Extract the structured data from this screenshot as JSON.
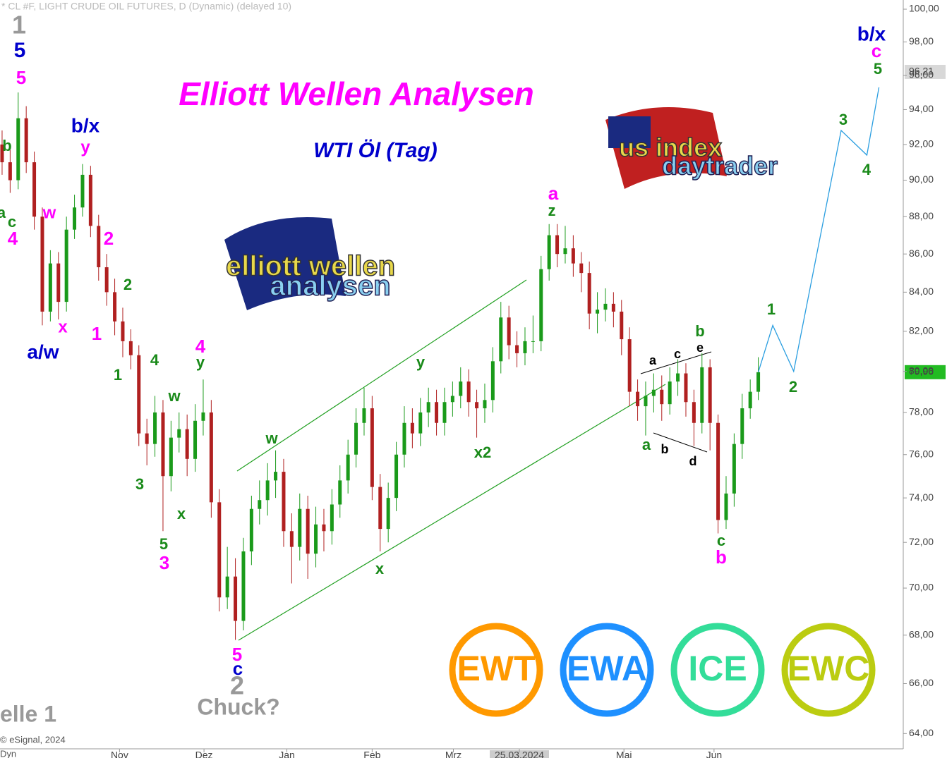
{
  "header": "* CL #F, LIGHT CRUDE OIL FUTURES, D (Dynamic) (delayed 10)",
  "copyright": "© eSignal, 2024",
  "corner_label": "Dyn",
  "chart_data": {
    "type": "candlestick",
    "title": "Elliott Wellen Analysen",
    "subtitle": "WTI Öl (Tag)",
    "log_scale": true,
    "ylim": [
      63.4,
      100.5
    ],
    "xlim": [
      -0.26,
      112.02
    ],
    "yticks": [
      {
        "value": 64,
        "label": "64,00"
      },
      {
        "value": 66,
        "label": "66,00"
      },
      {
        "value": 68,
        "label": "68,00"
      },
      {
        "value": 70,
        "label": "70,00"
      },
      {
        "value": 72,
        "label": "72,00"
      },
      {
        "value": 74,
        "label": "74,00"
      },
      {
        "value": 76,
        "label": "76,00"
      },
      {
        "value": 78,
        "label": "78,00"
      },
      {
        "value": 80,
        "label": "80,00"
      },
      {
        "value": 82,
        "label": "82,00"
      },
      {
        "value": 84,
        "label": "84,00"
      },
      {
        "value": 86,
        "label": "86,00"
      },
      {
        "value": 88,
        "label": "88,00"
      },
      {
        "value": 90,
        "label": "90,00"
      },
      {
        "value": 92,
        "label": "92,00"
      },
      {
        "value": 94,
        "label": "94,00"
      },
      {
        "value": 96,
        "label": "96,00"
      },
      {
        "value": 98,
        "label": "98,00"
      },
      {
        "value": 100,
        "label": "100,00"
      }
    ],
    "xticks": [
      {
        "value": 14.6,
        "label": "Nov"
      },
      {
        "value": 25.1,
        "label": "Dez"
      },
      {
        "value": 35.4,
        "label": "Jan"
      },
      {
        "value": 46.0,
        "label": "Feb"
      },
      {
        "value": 56.1,
        "label": "Mrz"
      },
      {
        "value": 64.3,
        "label": "25.03.2024"
      },
      {
        "value": 77.3,
        "label": "Mai"
      },
      {
        "value": 88.5,
        "label": "Jun"
      }
    ],
    "up_color": "#1a9a1a",
    "down_color": "#b02020",
    "open": [
      92.0,
      91.0,
      90.0,
      93.5,
      91.0,
      88.0,
      83.0,
      85.5,
      83.5,
      87.3,
      88.5,
      90.3,
      87.5,
      85.3,
      84.0,
      82.5,
      81.5,
      80.8,
      77.0,
      76.5,
      78.0,
      75.0,
      76.8,
      77.2,
      75.8,
      77.6,
      78.0,
      73.8,
      69.6,
      70.5,
      68.6,
      71.6,
      73.5,
      73.9,
      74.8,
      75.2,
      72.5,
      71.8,
      73.5,
      71.5,
      72.8,
      72.5,
      73.7,
      74.8,
      76.0,
      77.5,
      78.2,
      74.5,
      72.6,
      74.0,
      76.0,
      77.5,
      77.0,
      78.0,
      78.5,
      77.5,
      78.5,
      78.8,
      79.5,
      78.5,
      78.2,
      78.6,
      80.5,
      82.7,
      81.3,
      80.9,
      81.5,
      81.5,
      85.2,
      87.0,
      86.0,
      86.3,
      85.5,
      85.0,
      82.9,
      83.1,
      83.4,
      83.0,
      81.6,
      79.0,
      78.3,
      78.8,
      79.1,
      78.4,
      79.5,
      79.9,
      78.5,
      77.5,
      80.2,
      77.5,
      73.0,
      74.2,
      76.5,
      78.2,
      79.0
    ],
    "high": [
      92.8,
      91.7,
      95.0,
      94.2,
      91.6,
      88.5,
      86.2,
      86.1,
      88.0,
      89.2,
      90.9,
      90.8,
      88.1,
      86.0,
      84.7,
      83.2,
      82.1,
      81.3,
      77.7,
      78.8,
      78.6,
      77.6,
      78.0,
      77.9,
      78.4,
      79.6,
      78.6,
      74.4,
      71.8,
      71.3,
      72.2,
      74.1,
      74.8,
      75.6,
      76.2,
      75.8,
      73.3,
      74.2,
      74.1,
      73.6,
      73.5,
      74.4,
      75.5,
      76.7,
      78.2,
      79.2,
      78.8,
      75.1,
      74.7,
      76.6,
      78.3,
      78.2,
      78.7,
      79.2,
      79.1,
      79.2,
      79.5,
      80.2,
      80.1,
      79.1,
      79.4,
      81.2,
      83.5,
      83.3,
      82.0,
      82.2,
      82.8,
      85.9,
      87.6,
      87.6,
      87.5,
      87.0,
      86.1,
      85.6,
      84.0,
      84.2,
      84.0,
      83.6,
      82.2,
      79.6,
      79.5,
      79.9,
      79.8,
      80.2,
      80.6,
      80.4,
      79.1,
      80.9,
      80.6,
      77.9,
      75.0,
      77.0,
      78.9,
      79.6,
      80.7
    ],
    "low": [
      90.3,
      89.3,
      89.5,
      90.4,
      87.3,
      82.3,
      82.5,
      82.6,
      83.0,
      86.8,
      88.0,
      86.9,
      84.6,
      83.3,
      81.8,
      80.7,
      80.1,
      76.4,
      75.5,
      75.9,
      72.5,
      74.3,
      76.1,
      75.0,
      75.2,
      76.9,
      73.1,
      69.0,
      69.1,
      67.8,
      68.2,
      71.0,
      72.8,
      73.2,
      74.0,
      71.8,
      70.2,
      71.2,
      70.4,
      70.9,
      71.6,
      71.9,
      73.1,
      74.2,
      75.4,
      76.9,
      73.9,
      71.6,
      72.0,
      73.4,
      75.4,
      76.3,
      76.4,
      77.3,
      76.9,
      76.9,
      77.8,
      78.2,
      77.8,
      76.8,
      77.5,
      78.0,
      79.9,
      80.6,
      80.2,
      80.3,
      80.9,
      81.0,
      84.6,
      85.3,
      85.5,
      84.8,
      84.0,
      82.1,
      81.9,
      82.5,
      82.2,
      80.8,
      78.3,
      77.6,
      76.9,
      78.0,
      77.6,
      77.9,
      78.8,
      77.8,
      76.4,
      77.0,
      76.2,
      72.4,
      72.6,
      73.6,
      75.8,
      77.7,
      78.6
    ],
    "close": [
      91.0,
      90.0,
      93.5,
      91.0,
      88.0,
      83.0,
      85.5,
      83.5,
      87.3,
      88.5,
      90.3,
      87.5,
      85.3,
      84.0,
      82.5,
      81.5,
      80.8,
      77.0,
      76.5,
      78.0,
      75.0,
      76.8,
      77.2,
      75.8,
      77.6,
      78.0,
      73.8,
      69.6,
      70.5,
      68.6,
      71.6,
      73.5,
      73.9,
      74.8,
      75.2,
      72.5,
      71.8,
      73.5,
      71.5,
      72.8,
      72.5,
      73.7,
      74.8,
      76.0,
      77.5,
      78.2,
      74.5,
      72.6,
      74.0,
      76.0,
      77.5,
      77.0,
      78.0,
      78.5,
      77.5,
      78.5,
      78.8,
      79.5,
      78.5,
      78.2,
      78.6,
      80.5,
      82.7,
      81.3,
      80.9,
      81.5,
      81.5,
      85.2,
      87.0,
      86.0,
      86.3,
      85.5,
      85.0,
      82.9,
      83.1,
      83.4,
      83.0,
      81.6,
      79.0,
      78.3,
      78.8,
      79.1,
      78.4,
      79.5,
      79.9,
      78.5,
      77.5,
      80.2,
      77.5,
      73.0,
      74.2,
      76.5,
      78.2,
      79.0,
      79.96
    ],
    "projection": {
      "color": "#2a9ee0",
      "x": [
        94,
        95.8,
        98.4,
        104.3,
        107.5,
        109
      ],
      "values": [
        79.96,
        82.3,
        80.0,
        92.8,
        91.4,
        95.3
      ]
    },
    "price_markers": [
      {
        "value": 96.21,
        "label": "96,21",
        "color": "#d8d8d8"
      },
      {
        "value": 79.96,
        "label": "79,96",
        "color": "#22bb22"
      }
    ],
    "annotations": [
      {
        "text": "1",
        "color": "#999999"
      },
      {
        "text": "5",
        "color": "#0000cc"
      },
      {
        "text": "5",
        "color": "#ff00ff"
      },
      {
        "text": "b",
        "color": "#1a8a1a"
      },
      {
        "text": "a",
        "color": "#1a8a1a"
      },
      {
        "text": "c",
        "color": "#1a8a1a"
      },
      {
        "text": "4",
        "color": "#ff00ff"
      },
      {
        "text": "w",
        "color": "#ff00ff"
      },
      {
        "text": "b/x",
        "color": "#0000cc"
      },
      {
        "text": "y",
        "color": "#ff00ff"
      },
      {
        "text": "x",
        "color": "#ff00ff"
      },
      {
        "text": "a/w",
        "color": "#0000cc"
      },
      {
        "text": "2",
        "color": "#ff00ff"
      },
      {
        "text": "2",
        "color": "#1a8a1a"
      },
      {
        "text": "1",
        "color": "#ff00ff"
      },
      {
        "text": "1",
        "color": "#1a8a1a"
      },
      {
        "text": "4",
        "color": "#1a8a1a"
      },
      {
        "text": "4",
        "color": "#ff00ff"
      },
      {
        "text": "y",
        "color": "#1a8a1a"
      },
      {
        "text": "w",
        "color": "#1a8a1a"
      },
      {
        "text": "3",
        "color": "#1a8a1a"
      },
      {
        "text": "x",
        "color": "#1a8a1a"
      },
      {
        "text": "5",
        "color": "#1a8a1a"
      },
      {
        "text": "3",
        "color": "#ff00ff"
      },
      {
        "text": "w",
        "color": "#1a8a1a"
      },
      {
        "text": "5",
        "color": "#ff00ff"
      },
      {
        "text": "c",
        "color": "#0000cc"
      },
      {
        "text": "2",
        "color": "#999999"
      },
      {
        "text": "Chuck?",
        "color": "#999999"
      },
      {
        "text": "y",
        "color": "#1a8a1a"
      },
      {
        "text": "x",
        "color": "#1a8a1a"
      },
      {
        "text": "x2",
        "color": "#1a8a1a"
      },
      {
        "text": "a",
        "color": "#ff00ff"
      },
      {
        "text": "z",
        "color": "#1a8a1a"
      },
      {
        "text": "a",
        "color": "#1a8a1a"
      },
      {
        "text": "b",
        "color": "#000000"
      },
      {
        "text": "a",
        "color": "#000000"
      },
      {
        "text": "c",
        "color": "#000000"
      },
      {
        "text": "e",
        "color": "#000000"
      },
      {
        "text": "b",
        "color": "#1a8a1a"
      },
      {
        "text": "d",
        "color": "#000000"
      },
      {
        "text": "c",
        "color": "#1a8a1a"
      },
      {
        "text": "b",
        "color": "#ff00ff"
      },
      {
        "text": "1",
        "color": "#1a8a1a"
      },
      {
        "text": "2",
        "color": "#1a8a1a"
      },
      {
        "text": "3",
        "color": "#1a8a1a"
      },
      {
        "text": "4",
        "color": "#1a8a1a"
      },
      {
        "text": "5",
        "color": "#1a8a1a"
      },
      {
        "text": "c",
        "color": "#ff00ff"
      },
      {
        "text": "b/x",
        "color": "#0000cc"
      },
      {
        "text": "elle 1",
        "color": "#999999"
      }
    ]
  },
  "logos": [
    {
      "line1": "elliott wellen",
      "line2": "analysen"
    },
    {
      "line1": "us index",
      "line2": "daytrader"
    }
  ],
  "badges": [
    {
      "text": "EWT",
      "color": "#ff9900"
    },
    {
      "text": "EWA",
      "color": "#1e90ff"
    },
    {
      "text": "ICE",
      "color": "#33dd99"
    },
    {
      "text": "EWC",
      "color": "#bbcc11"
    }
  ]
}
